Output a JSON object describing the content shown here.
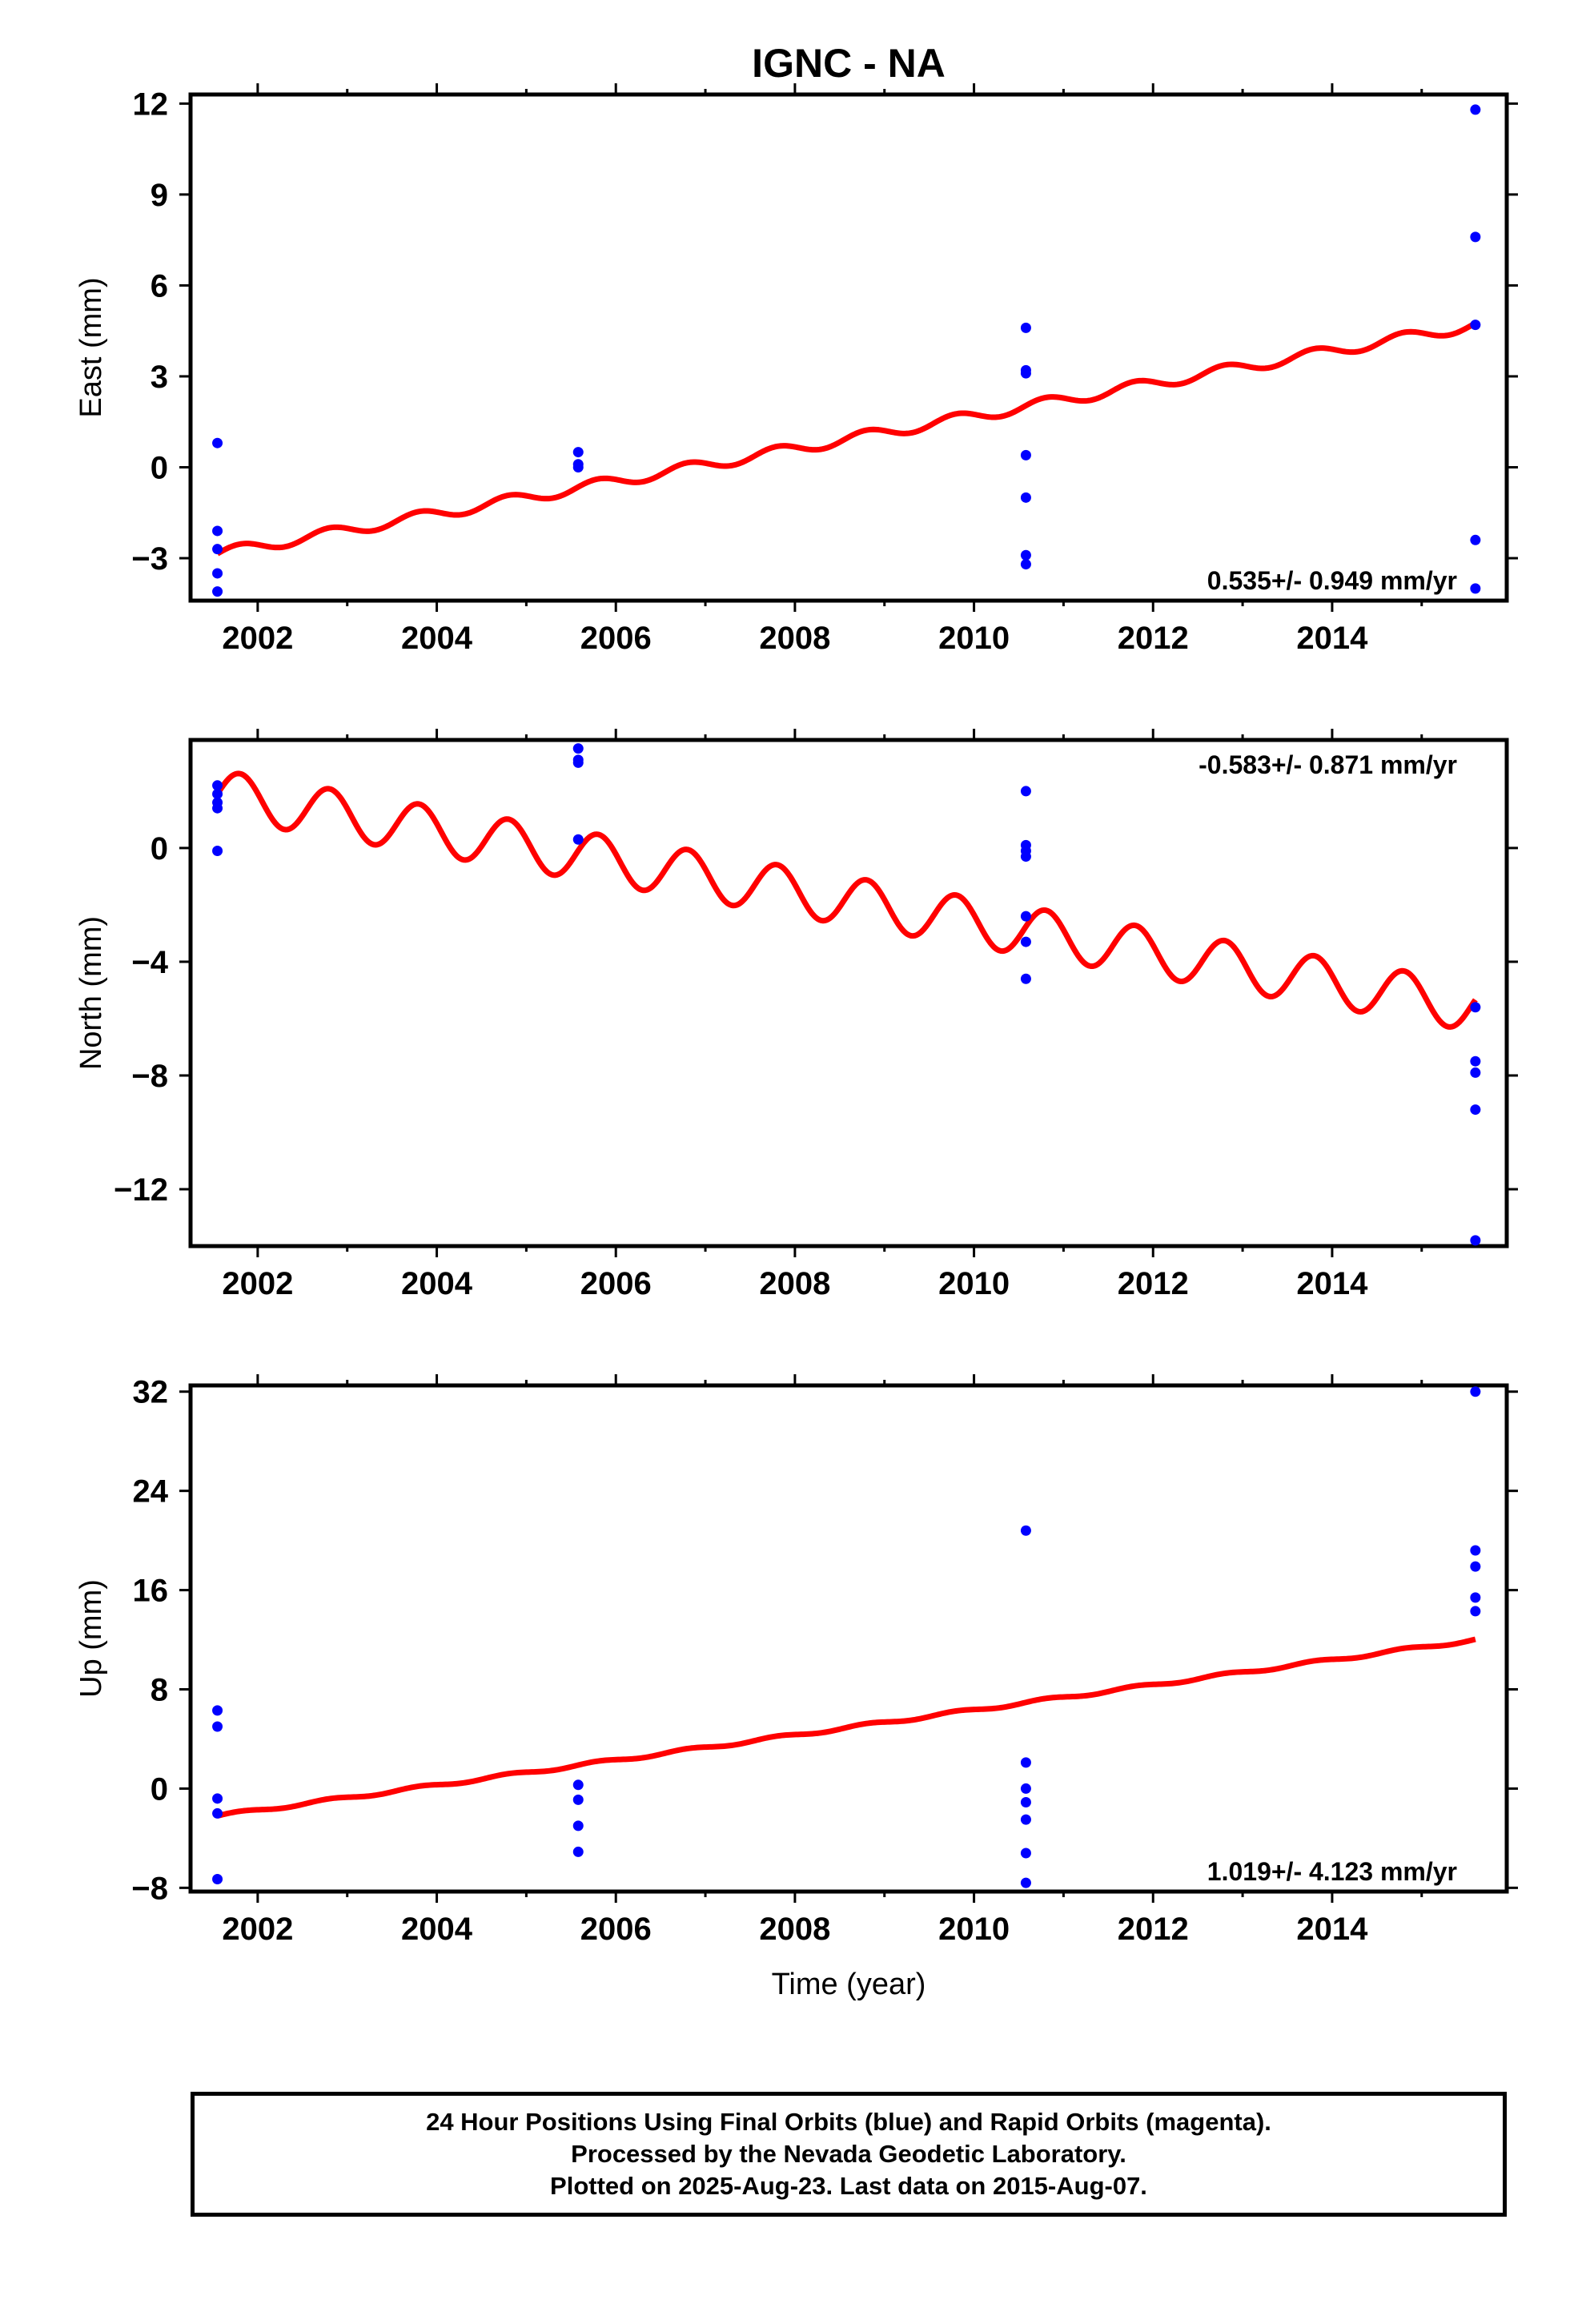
{
  "title": "IGNC - NA",
  "footer": {
    "line1": "24 Hour Positions Using Final Orbits (blue) and Rapid Orbits (magenta).",
    "line2": "Processed by the Nevada Geodetic Laboratory.",
    "line3": "Plotted on 2025-Aug-23. Last data on 2015-Aug-07."
  },
  "chart_data": [
    {
      "type": "scatter",
      "ylabel": "East (mm)",
      "xlabel": "",
      "xlim": [
        2001.25,
        2015.95
      ],
      "ylim": [
        -4.4,
        12.3
      ],
      "xticks": [
        2002,
        2004,
        2006,
        2008,
        2010,
        2012,
        2014
      ],
      "xtick_labels": [
        "2002",
        "2004",
        "2006",
        "2008",
        "2010",
        "2012",
        "2014"
      ],
      "yticks": [
        -3,
        0,
        3,
        6,
        9,
        12
      ],
      "ytick_labels": [
        "−3",
        "0",
        "3",
        "6",
        "9",
        "12"
      ],
      "rate_label": "0.535+/- 0.949 mm/yr",
      "rate_position": "bottom-right",
      "point_color": "#0000ff",
      "line_color": "#ff0000",
      "points": [
        {
          "x": 2001.55,
          "y": 0.8
        },
        {
          "x": 2001.55,
          "y": -2.1
        },
        {
          "x": 2001.55,
          "y": -2.7
        },
        {
          "x": 2001.55,
          "y": -3.5
        },
        {
          "x": 2001.55,
          "y": -4.1
        },
        {
          "x": 2005.58,
          "y": 0.5
        },
        {
          "x": 2005.58,
          "y": 0.1
        },
        {
          "x": 2005.58,
          "y": 0.0
        },
        {
          "x": 2010.58,
          "y": 4.6
        },
        {
          "x": 2010.58,
          "y": 3.2
        },
        {
          "x": 2010.58,
          "y": 3.1
        },
        {
          "x": 2010.58,
          "y": 0.4
        },
        {
          "x": 2010.58,
          "y": -1.0
        },
        {
          "x": 2010.58,
          "y": -2.9
        },
        {
          "x": 2010.58,
          "y": -3.2
        },
        {
          "x": 2015.6,
          "y": 11.8
        },
        {
          "x": 2015.6,
          "y": 7.6
        },
        {
          "x": 2015.6,
          "y": 4.7
        },
        {
          "x": 2015.6,
          "y": -2.4
        },
        {
          "x": 2015.6,
          "y": -4.0
        }
      ],
      "model": {
        "x_start": 2001.55,
        "x_end": 2015.6,
        "y_start": -2.85,
        "y_end": 4.7,
        "seasonal_amplitude": 0.18
      }
    },
    {
      "type": "scatter",
      "ylabel": "North (mm)",
      "xlabel": "",
      "xlim": [
        2001.25,
        2015.95
      ],
      "ylim": [
        -14.0,
        3.8
      ],
      "xticks": [
        2002,
        2004,
        2006,
        2008,
        2010,
        2012,
        2014
      ],
      "xtick_labels": [
        "2002",
        "2004",
        "2006",
        "2008",
        "2010",
        "2012",
        "2014"
      ],
      "yticks": [
        -12,
        -8,
        -4,
        0
      ],
      "ytick_labels": [
        "−12",
        "−8",
        "−4",
        "0"
      ],
      "rate_label": "-0.583+/- 0.871 mm/yr",
      "rate_position": "top-right",
      "point_color": "#0000ff",
      "line_color": "#ff0000",
      "points": [
        {
          "x": 2001.55,
          "y": 2.2
        },
        {
          "x": 2001.55,
          "y": 1.9
        },
        {
          "x": 2001.55,
          "y": 1.6
        },
        {
          "x": 2001.55,
          "y": 1.4
        },
        {
          "x": 2001.55,
          "y": -0.1
        },
        {
          "x": 2005.58,
          "y": 3.5
        },
        {
          "x": 2005.58,
          "y": 3.1
        },
        {
          "x": 2005.58,
          "y": 3.0
        },
        {
          "x": 2005.58,
          "y": 0.3
        },
        {
          "x": 2010.58,
          "y": 2.0
        },
        {
          "x": 2010.58,
          "y": 0.1
        },
        {
          "x": 2010.58,
          "y": -0.1
        },
        {
          "x": 2010.58,
          "y": -0.3
        },
        {
          "x": 2010.58,
          "y": -2.4
        },
        {
          "x": 2010.58,
          "y": -3.3
        },
        {
          "x": 2010.58,
          "y": -4.6
        },
        {
          "x": 2015.6,
          "y": -5.6
        },
        {
          "x": 2015.6,
          "y": -7.5
        },
        {
          "x": 2015.6,
          "y": -7.9
        },
        {
          "x": 2015.6,
          "y": -9.2
        },
        {
          "x": 2015.6,
          "y": -13.8
        }
      ],
      "model": {
        "x_start": 2001.55,
        "x_end": 2015.6,
        "y_start": 1.9,
        "y_end": -5.6,
        "seasonal_amplitude": 0.85
      }
    },
    {
      "type": "scatter",
      "ylabel": "Up (mm)",
      "xlabel": "Time (year)",
      "xlim": [
        2001.25,
        2015.95
      ],
      "ylim": [
        -8.3,
        32.5
      ],
      "xticks": [
        2002,
        2004,
        2006,
        2008,
        2010,
        2012,
        2014
      ],
      "xtick_labels": [
        "2002",
        "2004",
        "2006",
        "2008",
        "2010",
        "2012",
        "2014"
      ],
      "yticks": [
        -8,
        0,
        8,
        16,
        24,
        32
      ],
      "ytick_labels": [
        "−8",
        "0",
        "8",
        "16",
        "24",
        "32"
      ],
      "rate_label": "1.019+/- 4.123 mm/yr",
      "rate_position": "bottom-right",
      "point_color": "#0000ff",
      "line_color": "#ff0000",
      "points": [
        {
          "x": 2001.55,
          "y": 6.3
        },
        {
          "x": 2001.55,
          "y": 5.0
        },
        {
          "x": 2001.55,
          "y": -0.8
        },
        {
          "x": 2001.55,
          "y": -2.0
        },
        {
          "x": 2001.55,
          "y": -7.3
        },
        {
          "x": 2005.58,
          "y": 0.3
        },
        {
          "x": 2005.58,
          "y": -0.9
        },
        {
          "x": 2005.58,
          "y": -3.0
        },
        {
          "x": 2005.58,
          "y": -5.1
        },
        {
          "x": 2010.58,
          "y": 20.8
        },
        {
          "x": 2010.58,
          "y": 2.1
        },
        {
          "x": 2010.58,
          "y": 0.0
        },
        {
          "x": 2010.58,
          "y": -1.1
        },
        {
          "x": 2010.58,
          "y": -2.5
        },
        {
          "x": 2010.58,
          "y": -5.2
        },
        {
          "x": 2010.58,
          "y": -7.6
        },
        {
          "x": 2015.6,
          "y": 32.0
        },
        {
          "x": 2015.6,
          "y": 19.2
        },
        {
          "x": 2015.6,
          "y": 17.9
        },
        {
          "x": 2015.6,
          "y": 15.4
        },
        {
          "x": 2015.6,
          "y": 14.3
        }
      ],
      "model": {
        "x_start": 2001.55,
        "x_end": 2015.6,
        "y_start": -2.2,
        "y_end": 12.0,
        "seasonal_amplitude": 0.12
      }
    }
  ]
}
